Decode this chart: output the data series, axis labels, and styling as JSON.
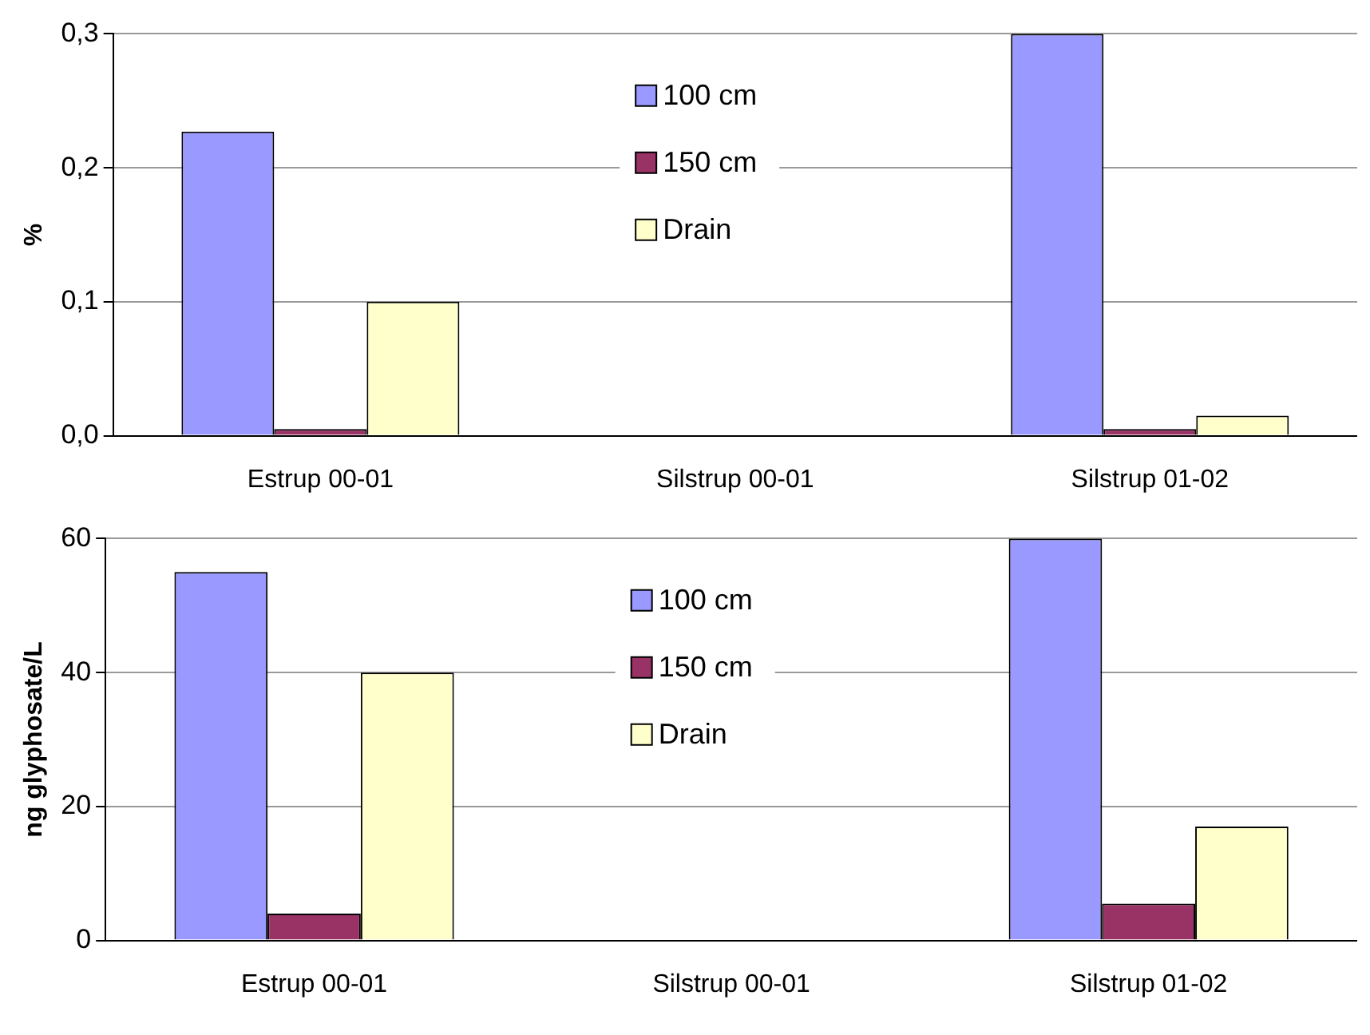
{
  "chart_data": [
    {
      "type": "bar",
      "ylabel": "%",
      "categories": [
        "Estrup 00-01",
        "Silstrup 00-01",
        "Silstrup 01-02"
      ],
      "series": [
        {
          "name": "100 cm",
          "color": "#9999ff",
          "values": [
            0.227,
            null,
            0.3
          ]
        },
        {
          "name": "150 cm",
          "color": "#993366",
          "values": [
            0.005,
            null,
            0.005
          ]
        },
        {
          "name": "Drain",
          "color": "#ffffcc",
          "values": [
            0.1,
            null,
            0.015
          ]
        }
      ],
      "ylim": [
        0,
        0.3
      ],
      "yticks": [
        {
          "value": 0,
          "label": "0,0"
        },
        {
          "value": 0.1,
          "label": "0,1"
        },
        {
          "value": 0.2,
          "label": "0,2"
        },
        {
          "value": 0.3,
          "label": "0,3"
        }
      ],
      "grid": "y",
      "legend": "top"
    },
    {
      "type": "bar",
      "ylabel": "ng glyphosate/L",
      "categories": [
        "Estrup 00-01",
        "Silstrup 00-01",
        "Silstrup 01-02"
      ],
      "series": [
        {
          "name": "100 cm",
          "color": "#9999ff",
          "values": [
            55,
            null,
            60
          ]
        },
        {
          "name": "150 cm",
          "color": "#993366",
          "values": [
            4,
            null,
            5.5
          ]
        },
        {
          "name": "Drain",
          "color": "#ffffcc",
          "values": [
            40,
            null,
            17
          ]
        }
      ],
      "ylim": [
        0,
        60
      ],
      "yticks": [
        0,
        20,
        40,
        60
      ],
      "grid": "y",
      "legend": "top"
    }
  ]
}
